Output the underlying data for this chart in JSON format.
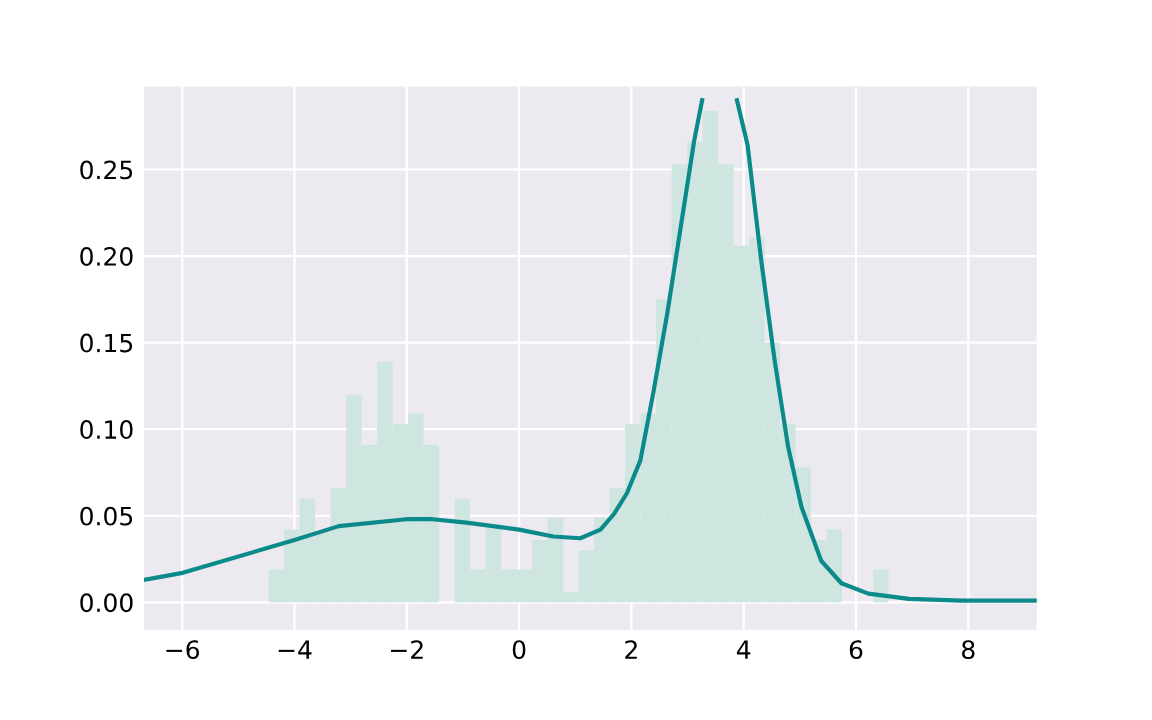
{
  "chart_data": {
    "type": "histogram",
    "series": [
      {
        "color": "#cfe6e0",
        "bins": [
          -4.46,
          -4.184,
          -3.908,
          -3.632,
          -3.356,
          -3.08,
          -2.804,
          -2.528,
          -2.252,
          -1.976,
          -1.7,
          -1.424,
          -1.148,
          -0.872,
          -0.596,
          -0.32,
          -0.044,
          0.232,
          0.508,
          0.784,
          1.06,
          1.336,
          1.612,
          1.888,
          2.164,
          2.44,
          2.716,
          2.992,
          3.268,
          3.544,
          3.82,
          4.096,
          4.372,
          4.648,
          4.924,
          5.2,
          5.476,
          5.752,
          6.028,
          6.304,
          6.58
        ],
        "values": [
          0.019,
          0.042,
          0.06,
          0.041,
          0.066,
          0.12,
          0.091,
          0.139,
          0.103,
          0.109,
          0.091,
          0,
          0.06,
          0.019,
          0.045,
          0.019,
          0.019,
          0.036,
          0.049,
          0.006,
          0.03,
          0.049,
          0.066,
          0.103,
          0.109,
          0.175,
          0.253,
          0.266,
          0.284,
          0.253,
          0.206,
          0.211,
          0.15,
          0.103,
          0.078,
          0.036,
          0.042,
          0,
          0,
          0.019
        ]
      },
      {
        "type": "line",
        "color": "#0b8a8c",
        "x": [
          -6.68,
          -5.99,
          -4.0,
          -3.21,
          -2.01,
          -1.54,
          -0.94,
          0,
          0.61,
          1.09,
          1.45,
          1.69,
          1.92,
          2.16,
          2.39,
          2.64,
          2.88,
          3.12,
          3.26,
          3.57,
          3.88,
          4.07,
          4.31,
          4.55,
          4.79,
          5.03,
          5.38,
          5.74,
          6.22,
          6.94,
          7.88,
          9.22
        ],
        "values": [
          0.013,
          0.017,
          0.036,
          0.044,
          0.048,
          0.048,
          0.046,
          0.042,
          0.038,
          0.037,
          0.042,
          0.051,
          0.063,
          0.082,
          0.121,
          0.167,
          0.217,
          0.267,
          0.29,
          null,
          0.29,
          0.264,
          0.198,
          0.14,
          0.09,
          0.055,
          0.024,
          0.011,
          0.005,
          0.002,
          0.001,
          0.001
        ]
      }
    ],
    "xlim": [
      -6.68,
      9.22
    ],
    "ylim": [
      -0.016,
      0.298
    ],
    "xticks": [
      {
        "value": -6,
        "label": "−6"
      },
      {
        "value": -4,
        "label": "−4"
      },
      {
        "value": -2,
        "label": "−2"
      },
      0,
      2,
      4,
      6,
      8
    ],
    "yticks": [
      {
        "value": 0,
        "label": "0.00"
      },
      {
        "value": 0.05,
        "label": "0.05"
      },
      {
        "value": 0.1,
        "label": "0.10"
      },
      {
        "value": 0.15,
        "label": "0.15"
      },
      {
        "value": 0.2,
        "label": "0.20"
      },
      {
        "value": 0.25,
        "label": "0.25"
      }
    ],
    "grid": true
  }
}
